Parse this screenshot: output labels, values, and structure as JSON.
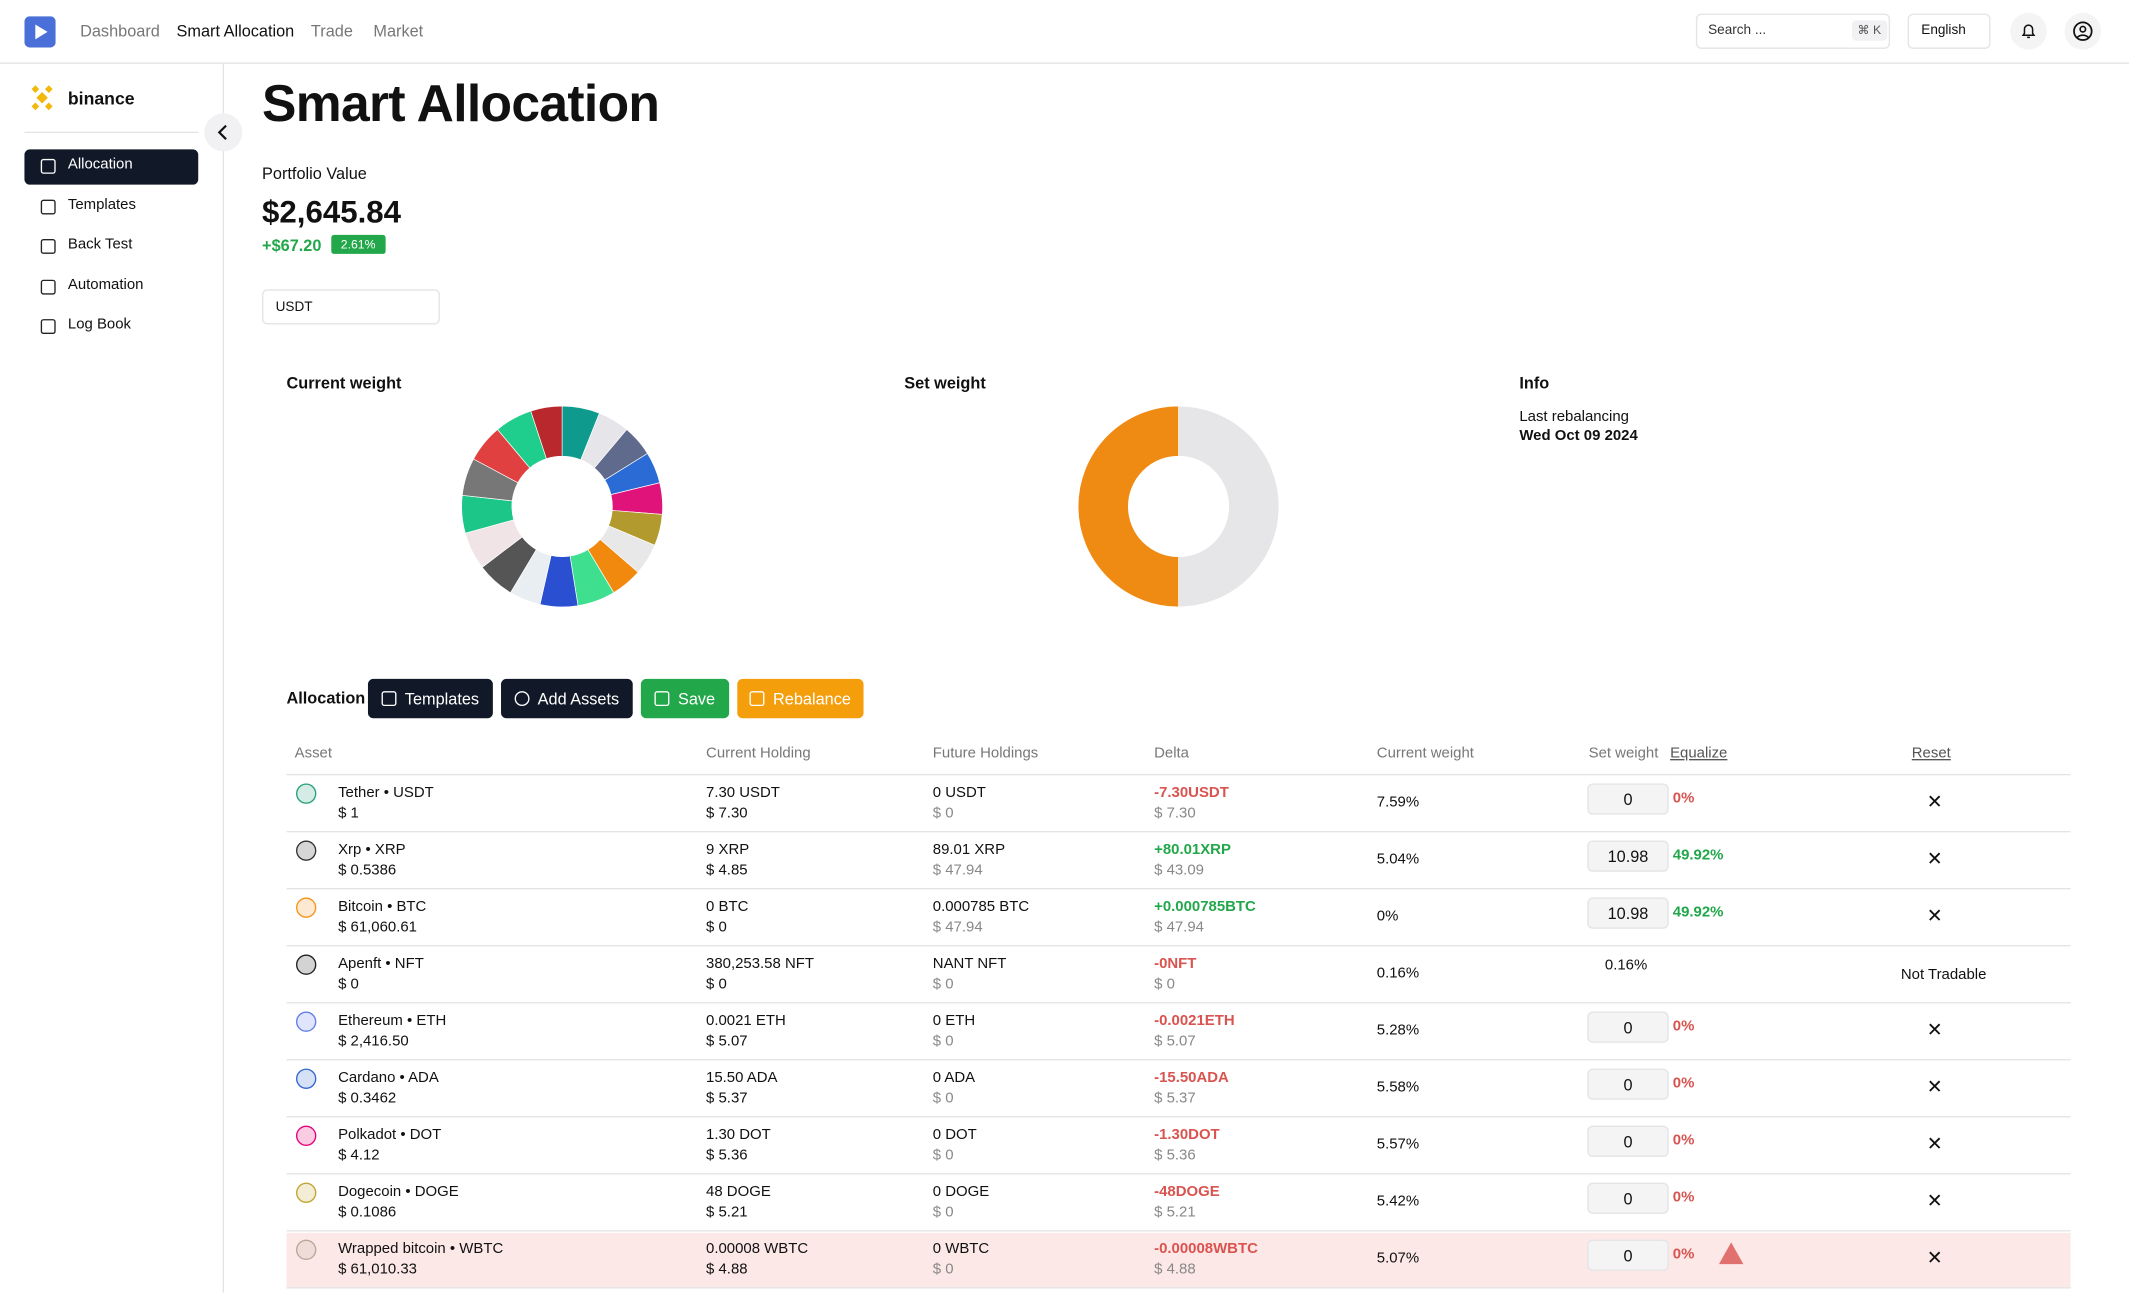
{
  "nav": {
    "items": [
      "Dashboard",
      "Smart Allocation",
      "Trade",
      "Market"
    ],
    "active": 1,
    "search": "Search ...",
    "shortcut": "⌘ K",
    "language": "English"
  },
  "sidebar": {
    "exchange": "binance",
    "items": [
      "Allocation",
      "Templates",
      "Back Test",
      "Automation",
      "Log Book"
    ],
    "active": 0
  },
  "header": {
    "title": "Smart Allocation",
    "portfolio_label": "Portfolio Value",
    "portfolio_value": "$2,645.84",
    "change": "+$67.20",
    "change_pct": "2.61%",
    "currency": "USDT"
  },
  "cards": {
    "current_title": "Current weight",
    "set_title": "Set weight",
    "info_title": "Info",
    "info_label": "Last rebalancing",
    "info_value": "Wed Oct 09 2024"
  },
  "current_chart": {
    "values": [
      6,
      5,
      5,
      5,
      5,
      5,
      5,
      5,
      6,
      6,
      5,
      6,
      6,
      6,
      6,
      6,
      6,
      5
    ],
    "colors": [
      "#0f9a8e",
      "#e6e6ea",
      "#606a8c",
      "#2a6bd6",
      "#e0137a",
      "#b29a2e",
      "#e8e8e8",
      "#f0890e",
      "#3ee08f",
      "#2a4fd0",
      "#e9eef2",
      "#555555",
      "#f1e4e6",
      "#1cc588",
      "#777777",
      "#e04040",
      "#1fce8c",
      "#b8282c"
    ]
  },
  "set_chart": {
    "values": [
      49.92,
      49.92
    ],
    "colors": [
      "#e6e6e8",
      "#ef8a12"
    ]
  },
  "allocation": {
    "title": "Allocation",
    "buttons": [
      "Templates",
      "Add Assets",
      "Save",
      "Rebalance"
    ],
    "columns": [
      "Asset",
      "Current Holding",
      "Future Holdings",
      "Delta",
      "Current weight",
      "Set weight",
      "Equalize",
      "Reset"
    ],
    "rows": [
      {
        "icon": "#26a17b",
        "asset": "Tether • USDT",
        "price": "$ 1",
        "holding": "7.30 USDT",
        "holding_usd": "$ 7.30",
        "future": "0 USDT",
        "future_usd": "$ 0",
        "delta": "-7.30USDT",
        "delta_usd": "$ 7.30",
        "weight": "7.59%",
        "set": "0",
        "set_pct": "0%"
      },
      {
        "icon": "#333333",
        "asset": "Xrp • XRP",
        "price": "$ 0.5386",
        "holding": "9 XRP",
        "holding_usd": "$ 4.85",
        "future": "89.01 XRP",
        "future_usd": "$ 47.94",
        "delta": "+80.01XRP",
        "delta_usd": "$ 43.09",
        "weight": "5.04%",
        "set": "10.98",
        "set_pct": "49.92%"
      },
      {
        "icon": "#f7931a",
        "asset": "Bitcoin • BTC",
        "price": "$ 61,060.61",
        "holding": "0 BTC",
        "holding_usd": "$ 0",
        "future": "0.000785 BTC",
        "future_usd": "$ 47.94",
        "delta": "+0.000785BTC",
        "delta_usd": "$ 47.94",
        "weight": "0%",
        "set": "10.98",
        "set_pct": "49.92%"
      },
      {
        "icon": "#222222",
        "asset": "Apenft • NFT",
        "price": "$ 0",
        "holding": "380,253.58 NFT",
        "holding_usd": "$ 0",
        "future": "NANT NFT",
        "future_usd": "$ 0",
        "delta": "-0NFT",
        "delta_usd": "$ 0",
        "weight": "0.16%",
        "set_text": "0.16%",
        "status": "Not Tradable"
      },
      {
        "icon": "#627eea",
        "asset": "Ethereum • ETH",
        "price": "$ 2,416.50",
        "holding": "0.0021 ETH",
        "holding_usd": "$ 5.07",
        "future": "0 ETH",
        "future_usd": "$ 0",
        "delta": "-0.0021ETH",
        "delta_usd": "$ 5.07",
        "weight": "5.28%",
        "set": "0",
        "set_pct": "0%"
      },
      {
        "icon": "#3468d1",
        "asset": "Cardano • ADA",
        "price": "$ 0.3462",
        "holding": "15.50 ADA",
        "holding_usd": "$ 5.37",
        "future": "0 ADA",
        "future_usd": "$ 0",
        "delta": "-15.50ADA",
        "delta_usd": "$ 5.37",
        "weight": "5.58%",
        "set": "0",
        "set_pct": "0%"
      },
      {
        "icon": "#e6007a",
        "asset": "Polkadot • DOT",
        "price": "$ 4.12",
        "holding": "1.30 DOT",
        "holding_usd": "$ 5.36",
        "future": "0 DOT",
        "future_usd": "$ 0",
        "delta": "-1.30DOT",
        "delta_usd": "$ 5.36",
        "weight": "5.57%",
        "set": "0",
        "set_pct": "0%"
      },
      {
        "icon": "#c2a633",
        "asset": "Dogecoin • DOGE",
        "price": "$ 0.1086",
        "holding": "48 DOGE",
        "holding_usd": "$ 5.21",
        "future": "0 DOGE",
        "future_usd": "$ 0",
        "delta": "-48DOGE",
        "delta_usd": "$ 5.21",
        "weight": "5.42%",
        "set": "0",
        "set_pct": "0%"
      },
      {
        "icon": "#b9a89a",
        "asset": "Wrapped bitcoin • WBTC",
        "price": "$ 61,010.33",
        "holding": "0.00008 WBTC",
        "holding_usd": "$ 4.88",
        "future": "0 WBTC",
        "future_usd": "$ 0",
        "delta": "-0.00008WBTC",
        "delta_usd": "$ 4.88",
        "weight": "5.07%",
        "set": "0",
        "set_pct": "0%",
        "warning": true
      }
    ]
  }
}
